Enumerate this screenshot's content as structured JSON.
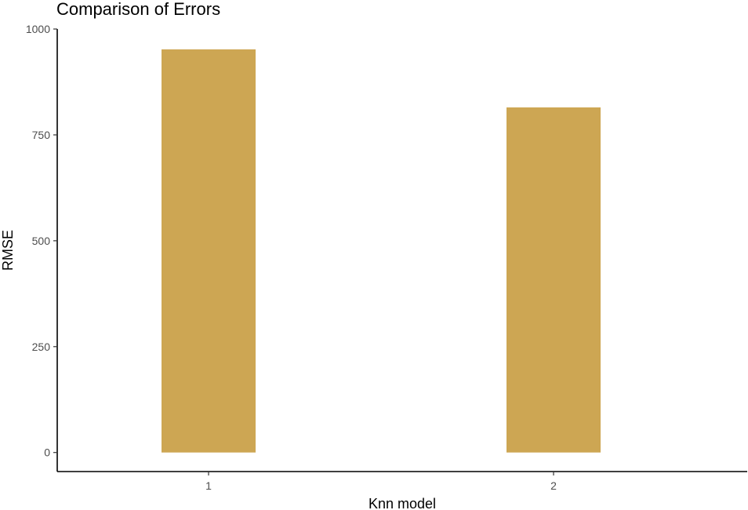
{
  "chart_data": {
    "type": "bar",
    "title": "Comparison of Errors",
    "xlabel": "Knn model",
    "ylabel": "RMSE",
    "categories": [
      "1",
      "2"
    ],
    "values": [
      952,
      815
    ],
    "ylim": [
      -45,
      1000
    ],
    "yticks": [
      0,
      250,
      500,
      750,
      1000
    ],
    "grid": false,
    "bar_color": "#CDA653"
  }
}
